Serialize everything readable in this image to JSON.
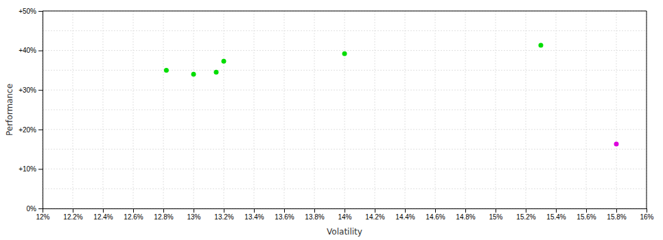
{
  "chart_data": {
    "type": "scatter",
    "xlabel": "Volatility",
    "ylabel": "Performance",
    "xlim": [
      0.12,
      0.16
    ],
    "ylim": [
      0.0,
      0.5
    ],
    "xticks": [
      {
        "value": 0.12,
        "label": "12%"
      },
      {
        "value": 0.122,
        "label": "12.2%"
      },
      {
        "value": 0.124,
        "label": "12.4%"
      },
      {
        "value": 0.126,
        "label": "12.6%"
      },
      {
        "value": 0.128,
        "label": "12.8%"
      },
      {
        "value": 0.13,
        "label": "13%"
      },
      {
        "value": 0.132,
        "label": "13.2%"
      },
      {
        "value": 0.134,
        "label": "13.4%"
      },
      {
        "value": 0.136,
        "label": "13.6%"
      },
      {
        "value": 0.138,
        "label": "13.8%"
      },
      {
        "value": 0.14,
        "label": "14%"
      },
      {
        "value": 0.142,
        "label": "14.2%"
      },
      {
        "value": 0.144,
        "label": "14.4%"
      },
      {
        "value": 0.146,
        "label": "14.6%"
      },
      {
        "value": 0.148,
        "label": "14.8%"
      },
      {
        "value": 0.15,
        "label": "15%"
      },
      {
        "value": 0.152,
        "label": "15.2%"
      },
      {
        "value": 0.154,
        "label": "15.4%"
      },
      {
        "value": 0.156,
        "label": "15.6%"
      },
      {
        "value": 0.158,
        "label": "15.8%"
      },
      {
        "value": 0.16,
        "label": "16%"
      }
    ],
    "yticks": [
      {
        "value": 0.0,
        "label": "0%"
      },
      {
        "value": 0.1,
        "label": "+10%"
      },
      {
        "value": 0.2,
        "label": "+20%"
      },
      {
        "value": 0.3,
        "label": "+30%"
      },
      {
        "value": 0.4,
        "label": "+40%"
      },
      {
        "value": 0.5,
        "label": "+50%"
      }
    ],
    "minor_yticks": [
      0.05,
      0.15,
      0.25,
      0.35,
      0.45
    ],
    "grid": true,
    "series": [
      {
        "color": "#00dd00",
        "x": [
          0.1282,
          0.13,
          0.1315,
          0.132,
          0.14,
          0.153
        ],
        "values": [
          0.35,
          0.34,
          0.345,
          0.373,
          0.392,
          0.413
        ]
      },
      {
        "color": "#dd00dd",
        "x": [
          0.158
        ],
        "values": [
          0.163
        ]
      }
    ]
  }
}
